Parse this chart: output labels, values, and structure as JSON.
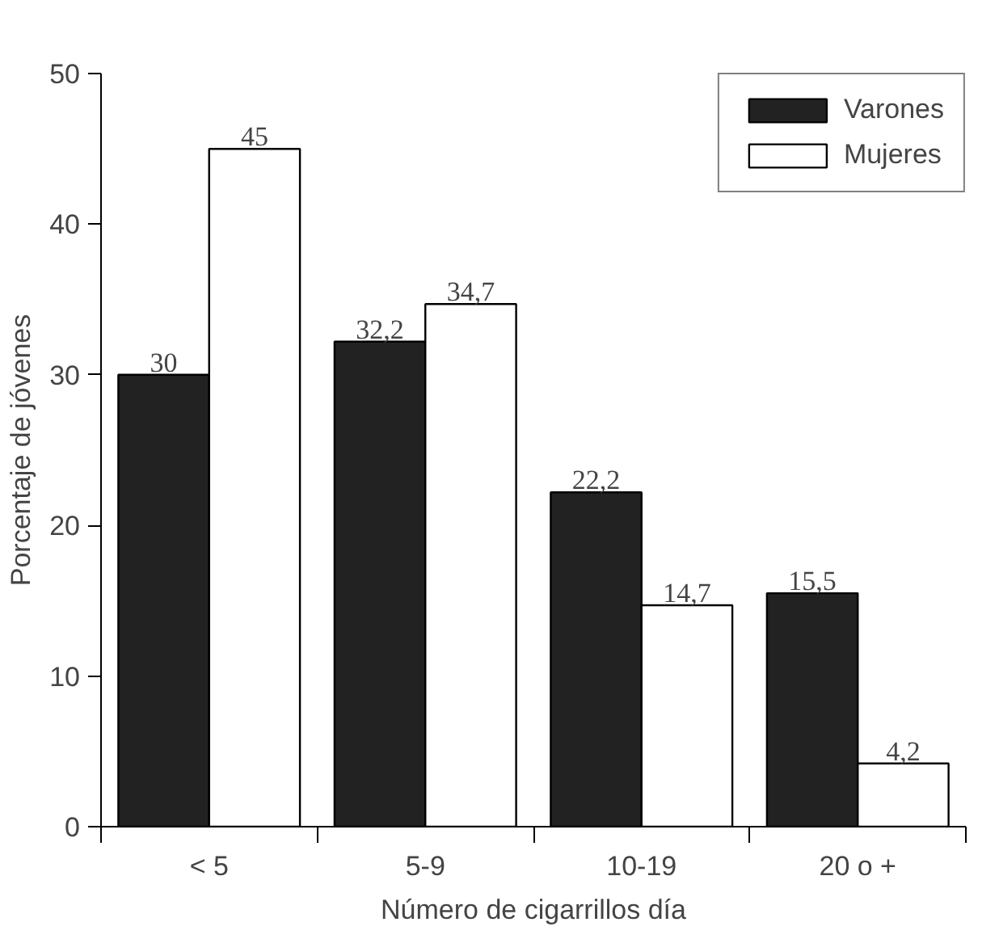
{
  "chart_data": {
    "type": "bar",
    "xlabel": "Número de cigarrillos día",
    "ylabel": "Porcentaje de jóvenes",
    "categories": [
      "< 5",
      "5-9",
      "10-19",
      "20 o +"
    ],
    "series": [
      {
        "name": "Varones",
        "color": "#222222",
        "values": [
          30,
          32.2,
          22.2,
          15.5
        ],
        "value_labels": [
          "30",
          "32,2",
          "22,2",
          "15,5"
        ]
      },
      {
        "name": "Mujeres",
        "color": "#ffffff",
        "values": [
          45,
          34.7,
          14.7,
          4.2
        ],
        "value_labels": [
          "45",
          "34,7",
          "14,7",
          "4,2"
        ]
      }
    ],
    "ylim": [
      0,
      50
    ],
    "yticks": [
      0,
      10,
      20,
      30,
      40,
      50
    ],
    "grid": false,
    "legend": "top right"
  }
}
